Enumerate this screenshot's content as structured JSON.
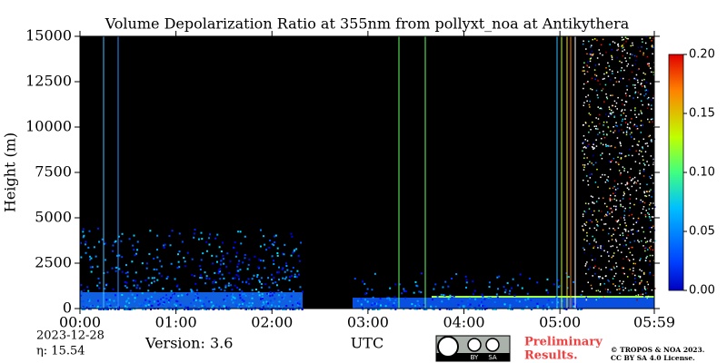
{
  "chart_data": {
    "type": "heatmap",
    "title": "Volume Depolarization Ratio at 355nm from pollyxt_noa at Antikythera",
    "ylabel": "Height (m)",
    "xlabel": "UTC",
    "ylim": [
      0,
      15000
    ],
    "yticks": [
      0,
      2500,
      5000,
      7500,
      10000,
      12500,
      15000
    ],
    "xlim": [
      "00:00",
      "05:59"
    ],
    "xticks": [
      "00:00",
      "01:00",
      "02:00",
      "03:00",
      "04:00",
      "05:00",
      "05:59"
    ],
    "colormap": "jet",
    "clim": [
      0,
      0.2
    ],
    "cticks": [
      {
        "value": 0,
        "label": "0.00"
      },
      {
        "value": 0.05,
        "label": "0.05"
      },
      {
        "value": 0.1,
        "label": "0.10"
      },
      {
        "value": 0.15,
        "label": "0.15"
      },
      {
        "value": 0.2,
        "label": "0.20"
      }
    ]
  },
  "footer": {
    "date": "2023-12-28",
    "eta": "η:  15.54",
    "version": "Version: 3.6",
    "badge": [
      "BY",
      "SA"
    ],
    "preliminary": [
      "Preliminary",
      "Results."
    ],
    "copyright": [
      "© TROPOS & NOA 2023.",
      "CC BY SA 4.0 License."
    ]
  }
}
